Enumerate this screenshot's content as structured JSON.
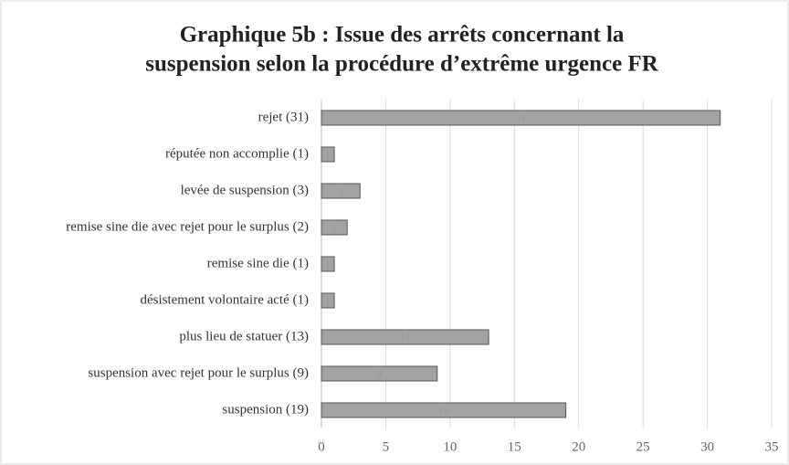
{
  "chart_data": {
    "type": "bar",
    "orientation": "horizontal",
    "title": [
      "Graphique 5b : Issue des arrêts concernant la",
      "suspension selon la procédure d’extrême urgence FR"
    ],
    "categories": [
      "rejet (31)",
      "réputée non accomplie (1)",
      "levée de suspension (3)",
      "remise sine die avec rejet pour le surplus (2)",
      "remise sine die (1)",
      "désistement volontaire acté (1)",
      "plus lieu de statuer (13)",
      "suspension avec rejet pour le surplus (9)",
      "suspension (19)"
    ],
    "values": [
      31,
      1,
      3,
      2,
      1,
      1,
      13,
      9,
      19
    ],
    "color": "#a3a3a3",
    "xlim": [
      0,
      35
    ],
    "xticks": [
      0,
      5,
      10,
      15,
      20,
      25,
      30,
      35
    ],
    "grid": true
  }
}
